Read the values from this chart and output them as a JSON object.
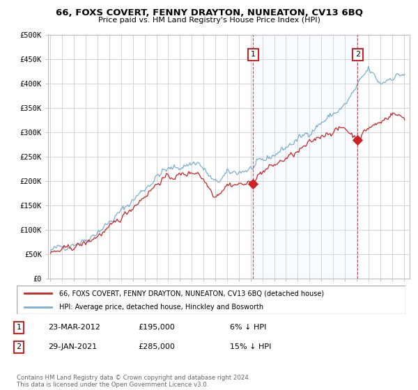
{
  "title": "66, FOXS COVERT, FENNY DRAYTON, NUNEATON, CV13 6BQ",
  "subtitle": "Price paid vs. HM Land Registry's House Price Index (HPI)",
  "legend_line1": "66, FOXS COVERT, FENNY DRAYTON, NUNEATON, CV13 6BQ (detached house)",
  "legend_line2": "HPI: Average price, detached house, Hinckley and Bosworth",
  "annotation1_label": "1",
  "annotation1_date": "23-MAR-2012",
  "annotation1_price": "£195,000",
  "annotation1_pct": "6% ↓ HPI",
  "annotation2_label": "2",
  "annotation2_date": "29-JAN-2021",
  "annotation2_price": "£285,000",
  "annotation2_pct": "15% ↓ HPI",
  "footer": "Contains HM Land Registry data © Crown copyright and database right 2024.\nThis data is licensed under the Open Government Licence v3.0.",
  "sale1_x": 2012.22,
  "sale1_y": 195000,
  "sale2_x": 2021.08,
  "sale2_y": 285000,
  "red_color": "#cc2222",
  "blue_color": "#7aadd4",
  "shade_color": "#ddeeff",
  "background_color": "#ffffff",
  "grid_color": "#cccccc",
  "ylim": [
    0,
    500000
  ],
  "xlim": [
    1994.8,
    2025.5
  ],
  "yticks": [
    0,
    50000,
    100000,
    150000,
    200000,
    250000,
    300000,
    350000,
    400000,
    450000,
    500000
  ],
  "xticks": [
    1995,
    1996,
    1997,
    1998,
    1999,
    2000,
    2001,
    2002,
    2003,
    2004,
    2005,
    2006,
    2007,
    2008,
    2009,
    2010,
    2011,
    2012,
    2013,
    2014,
    2015,
    2016,
    2017,
    2018,
    2019,
    2020,
    2021,
    2022,
    2023,
    2024,
    2025
  ]
}
